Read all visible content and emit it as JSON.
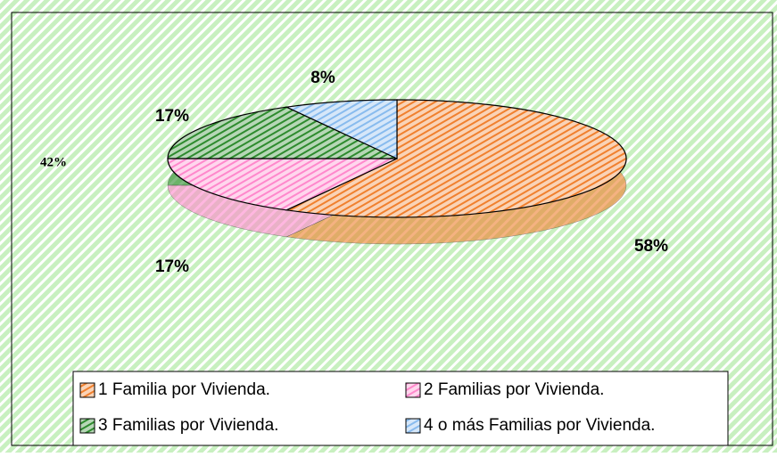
{
  "chart_data": {
    "type": "pie",
    "series": [
      {
        "name": "1 Familia por Vivienda.",
        "color": "#f0802e",
        "values": [
          58
        ],
        "value_labels": [
          "58%"
        ]
      },
      {
        "name": "2 Familias por Vivienda.",
        "color": "#ff88cc",
        "values": [
          17
        ],
        "value_labels": [
          "17%"
        ]
      },
      {
        "name": "3 Familias por Vivienda.",
        "color": "#2e8b2e",
        "values": [
          17
        ],
        "value_labels": [
          "17%"
        ]
      },
      {
        "name": "4 o más Familias por Vivienda.",
        "color": "#88bbee",
        "values": [
          8
        ],
        "value_labels": [
          "8%"
        ]
      }
    ],
    "annotations": [
      "42%"
    ]
  }
}
